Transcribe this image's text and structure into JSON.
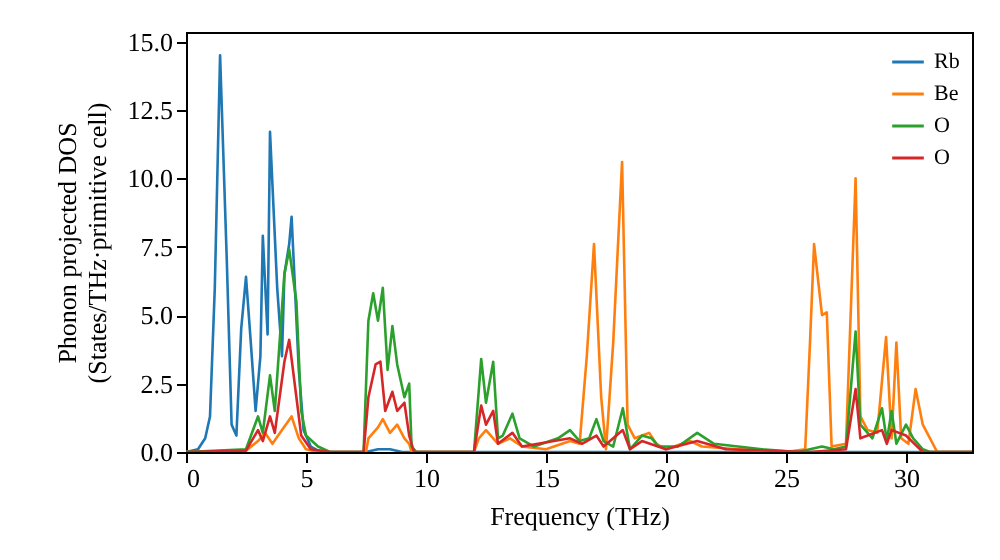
{
  "chart_data": {
    "type": "line",
    "xlabel": "Frequency (THz)",
    "ylabel": "Phonon projected DOS\n(States/THz·primitive cell)",
    "xlim": [
      0,
      32.75
    ],
    "xticks": [
      0,
      5,
      10,
      15,
      20,
      25,
      30
    ],
    "ylim": [
      0,
      15.35
    ],
    "yticks": [
      {
        "value": 0,
        "label": "0.0"
      },
      {
        "value": 2.5,
        "label": "2.5"
      },
      {
        "value": 5,
        "label": "5.0"
      },
      {
        "value": 7.5,
        "label": "7.5"
      },
      {
        "value": 10,
        "label": "10.0"
      },
      {
        "value": 12.5,
        "label": "12.5"
      },
      {
        "value": 15,
        "label": "15.0"
      }
    ],
    "grid": false,
    "legend": "top right",
    "series": [
      {
        "name": "Rb",
        "color": "#1f77b4",
        "x": [
          0,
          0.5,
          0.8,
          1.0,
          1.2,
          1.42,
          1.7,
          1.9,
          2.1,
          2.3,
          2.5,
          2.7,
          2.9,
          3.1,
          3.2,
          3.4,
          3.5,
          3.8,
          4.0,
          4.1,
          4.3,
          4.4,
          4.7,
          4.9,
          5.2,
          5.5,
          6,
          7.5,
          8,
          8.5,
          9,
          32.75
        ],
        "values": [
          0,
          0.1,
          0.5,
          1.3,
          6,
          14.5,
          7,
          1.0,
          0.6,
          4.5,
          6.4,
          4.0,
          1.5,
          3.5,
          7.9,
          4.3,
          11.7,
          6,
          3.5,
          6.5,
          7.6,
          8.6,
          3,
          0.8,
          0.2,
          0.05,
          0,
          0,
          0.1,
          0.1,
          0,
          0
        ]
      },
      {
        "name": "Be",
        "color": "#ff7f0e",
        "x": [
          0,
          2.5,
          3,
          3.3,
          3.6,
          4,
          4.4,
          4.7,
          5,
          5.5,
          7.5,
          7.6,
          8,
          8.2,
          8.5,
          8.8,
          9.1,
          9.3,
          9.4,
          12,
          12.2,
          12.5,
          12.8,
          13,
          13.5,
          14,
          15,
          16,
          16.4,
          16.7,
          17.0,
          17.3,
          17.5,
          17.8,
          18.17,
          18.4,
          18.7,
          19,
          19.3,
          19.6,
          20,
          21,
          21.5,
          23,
          25,
          25.8,
          26,
          26.17,
          26.5,
          26.7,
          26.9,
          27.5,
          27.9,
          28.1,
          28.4,
          28.8,
          29.17,
          29.4,
          29.6,
          29.8,
          30.1,
          30.4,
          30.7,
          31.3,
          32.75
        ],
        "values": [
          0,
          0.05,
          0.4,
          0.7,
          0.3,
          0.8,
          1.3,
          0.5,
          0.1,
          0,
          0,
          0.5,
          0.9,
          1.2,
          0.7,
          1.0,
          0.5,
          0.3,
          0,
          0,
          0.5,
          0.8,
          0.5,
          0.3,
          0.5,
          0.2,
          0.1,
          0.4,
          0.3,
          3.5,
          7.6,
          2,
          0.1,
          4,
          10.6,
          1.0,
          0.5,
          0.6,
          0.7,
          0.3,
          0.1,
          0.4,
          0.2,
          0.1,
          0,
          0.1,
          4,
          7.6,
          5.0,
          5.1,
          0.2,
          0.3,
          10.0,
          1.3,
          0.8,
          0.7,
          4.2,
          0.5,
          4.0,
          0.5,
          0.3,
          2.3,
          1.0,
          0,
          0
        ]
      },
      {
        "name": "O",
        "color": "#2ca02c",
        "x": [
          0,
          2.5,
          3,
          3.2,
          3.5,
          3.7,
          4.1,
          4.3,
          4.6,
          4.8,
          5,
          5.5,
          6,
          7.4,
          7.6,
          7.8,
          8,
          8.2,
          8.4,
          8.6,
          8.8,
          9.1,
          9.3,
          9.4,
          9.6,
          12,
          12.3,
          12.5,
          12.8,
          13,
          13.2,
          13.6,
          13.9,
          14.5,
          15.5,
          16,
          16.4,
          16.8,
          17.1,
          17.4,
          17.8,
          18.2,
          18.5,
          19,
          19.4,
          19.7,
          20.5,
          21.3,
          22,
          24,
          25.5,
          26,
          26.5,
          27,
          27.5,
          27.9,
          28.1,
          28.6,
          29,
          29.2,
          29.4,
          29.6,
          30,
          30.3,
          30.7,
          31,
          32.75
        ],
        "values": [
          0,
          0.1,
          1.3,
          0.7,
          2.8,
          1.5,
          6.5,
          7.4,
          5.5,
          1.5,
          0.6,
          0.2,
          0,
          0,
          4.8,
          5.8,
          4.8,
          6.0,
          3,
          4.6,
          3.2,
          2.0,
          2.5,
          0.2,
          0,
          0,
          3.4,
          1.8,
          3.3,
          0.5,
          0.6,
          1.4,
          0.5,
          0.2,
          0.5,
          0.8,
          0.4,
          0.5,
          1.2,
          0.4,
          0.2,
          1.6,
          0.1,
          0.6,
          0.5,
          0.2,
          0.2,
          0.7,
          0.3,
          0.1,
          0,
          0.1,
          0.2,
          0.1,
          0.2,
          4.4,
          1.0,
          0.5,
          1.6,
          0.4,
          1.5,
          0.3,
          1.0,
          0.5,
          0.1,
          0,
          0
        ]
      },
      {
        "name": "O",
        "color": "#d62728",
        "x": [
          0,
          2.5,
          3,
          3.2,
          3.5,
          3.7,
          4.1,
          4.3,
          4.6,
          4.8,
          5.2,
          6,
          7.4,
          7.6,
          7.9,
          8.1,
          8.3,
          8.6,
          8.8,
          9.1,
          9.3,
          9.5,
          12,
          12.3,
          12.5,
          12.8,
          13,
          13.6,
          14,
          16,
          16.5,
          17.1,
          17.4,
          18.2,
          18.5,
          19,
          20,
          21.3,
          22.5,
          26,
          27.5,
          27.9,
          28.1,
          29,
          29.2,
          29.4,
          30,
          30.7,
          32.75
        ],
        "values": [
          0,
          0.05,
          0.8,
          0.4,
          1.3,
          0.7,
          3.3,
          4.1,
          2.0,
          0.6,
          0.1,
          0,
          0,
          2.0,
          3.2,
          3.3,
          1.5,
          2.2,
          1.5,
          1.8,
          0.6,
          0,
          0,
          1.7,
          1.0,
          1.5,
          0.3,
          0.7,
          0.2,
          0.5,
          0.3,
          0.6,
          0.2,
          0.8,
          0.1,
          0.4,
          0.1,
          0.4,
          0.1,
          0,
          0.1,
          2.3,
          0.5,
          0.8,
          0.3,
          0.8,
          0.6,
          0,
          0
        ]
      }
    ]
  }
}
